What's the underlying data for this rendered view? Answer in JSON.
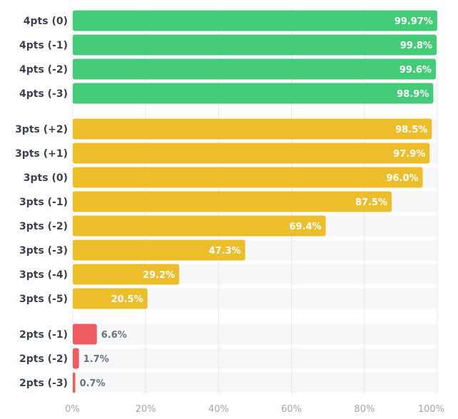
{
  "chart_data": {
    "type": "bar",
    "orientation": "horizontal",
    "xlim": [
      0,
      100
    ],
    "x_ticks": [
      "0%",
      "20%",
      "40%",
      "60%",
      "80%",
      "100%"
    ],
    "grid": true,
    "colors": {
      "4pts": "#44cb77",
      "3pts": "#edbe2c",
      "2pts": "#ee5c60"
    },
    "groups": [
      {
        "name": "4pts",
        "categories": [
          "4pts (0)",
          "4pts (-1)",
          "4pts (-2)",
          "4pts (-3)"
        ],
        "values": [
          99.97,
          99.8,
          99.6,
          98.9
        ],
        "labels": [
          "99.97%",
          "99.8%",
          "99.6%",
          "98.9%"
        ]
      },
      {
        "name": "3pts",
        "categories": [
          "3pts (+2)",
          "3pts (+1)",
          "3pts (0)",
          "3pts (-1)",
          "3pts (-2)",
          "3pts (-3)",
          "3pts (-4)",
          "3pts (-5)"
        ],
        "values": [
          98.5,
          97.9,
          96.0,
          87.5,
          69.4,
          47.3,
          29.2,
          20.5
        ],
        "labels": [
          "98.5%",
          "97.9%",
          "96.0%",
          "87.5%",
          "69.4%",
          "47.3%",
          "29.2%",
          "20.5%"
        ]
      },
      {
        "name": "2pts",
        "categories": [
          "2pts (-1)",
          "2pts (-2)",
          "2pts (-3)"
        ],
        "values": [
          6.6,
          1.7,
          0.7
        ],
        "labels": [
          "6.6%",
          "1.7%",
          "0.7%"
        ]
      }
    ]
  }
}
